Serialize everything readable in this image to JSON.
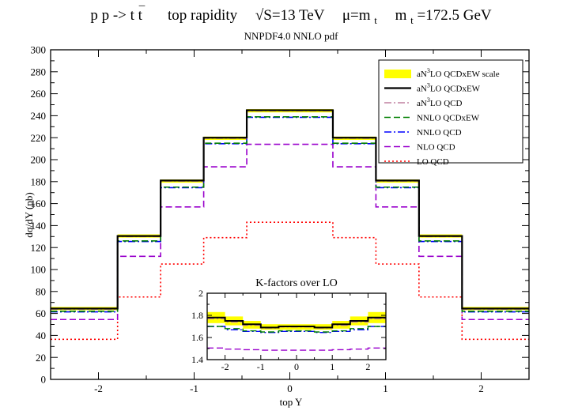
{
  "chart_data": [
    {
      "type": "line",
      "step": true,
      "title": "p p -> t t̄    top rapidity    √S=13 TeV    μ=m_t    m_t=172.5 GeV",
      "title_parts": {
        "process": "p p -> t t",
        "bar_top": "¯",
        "observable": "top rapidity",
        "energy": "√S=13 TeV",
        "scale_prefix": "μ=m",
        "scale_sub": "t",
        "mass_prefix": "m",
        "mass_sub": "t",
        "mass_value": "=172.5 GeV"
      },
      "subtitle": "NNPDF4.0 NNLO pdf",
      "xlabel": "top Y",
      "ylabel": "dσ/dY (pb)",
      "xlim": [
        -2.5,
        2.5
      ],
      "ylim": [
        0,
        300
      ],
      "xticks": [
        -2,
        -1,
        0,
        1,
        2
      ],
      "yticks": [
        0,
        20,
        40,
        60,
        80,
        100,
        120,
        140,
        160,
        180,
        200,
        220,
        240,
        260,
        280,
        300
      ],
      "bin_edges": [
        -2.5,
        -1.8,
        -1.35,
        -0.9,
        -0.45,
        0.45,
        0.9,
        1.35,
        1.8,
        2.5
      ],
      "grid": false,
      "legend_position": "top-right",
      "legend": [
        {
          "id": "band",
          "label_pre": "aN",
          "label_sup": "3",
          "label_post": "LO QCDxEW scale",
          "color": "#ffff00",
          "style": "band"
        },
        {
          "id": "an3lo_qcdxew",
          "label_pre": "aN",
          "label_sup": "3",
          "label_post": "LO QCDxEW",
          "color": "#000000",
          "style": "solid"
        },
        {
          "id": "an3lo_qcd",
          "label_pre": "aN",
          "label_sup": "3",
          "label_post": "LO QCD",
          "color": "#c080a0",
          "style": "dashdot"
        },
        {
          "id": "nnlo_qcdxew",
          "label_pre": "NNLO QCDxEW",
          "label_sup": "",
          "label_post": "",
          "color": "#008000",
          "style": "dashed"
        },
        {
          "id": "nnlo_qcd",
          "label_pre": "NNLO QCD",
          "label_sup": "",
          "label_post": "",
          "color": "#0000ff",
          "style": "dashdot"
        },
        {
          "id": "nlo_qcd",
          "label_pre": "NLO QCD",
          "label_sup": "",
          "label_post": "",
          "color": "#9900cc",
          "style": "dashed"
        },
        {
          "id": "lo_qcd",
          "label_pre": "LO QCD",
          "label_sup": "",
          "label_post": "",
          "color": "#ff0000",
          "style": "dotted"
        }
      ],
      "series": [
        {
          "id": "band_upper",
          "values": [
            66,
            132,
            182,
            221,
            246,
            221,
            182,
            132,
            66
          ]
        },
        {
          "id": "band_lower",
          "values": [
            63,
            129,
            179,
            218,
            243,
            218,
            179,
            129,
            63
          ]
        },
        {
          "id": "an3lo_qcdxew",
          "values": [
            64.5,
            130.5,
            181,
            220,
            245,
            220,
            181,
            130.5,
            64.5
          ]
        },
        {
          "id": "an3lo_qcd",
          "values": [
            64,
            130,
            180.5,
            219.5,
            244.5,
            219.5,
            180.5,
            130,
            64
          ]
        },
        {
          "id": "nnlo_qcdxew",
          "values": [
            62,
            126,
            175,
            215,
            239,
            215,
            175,
            126,
            62
          ]
        },
        {
          "id": "nnlo_qcd",
          "values": [
            61.5,
            125.5,
            174.5,
            214.5,
            238.5,
            214.5,
            174.5,
            125.5,
            61.5
          ]
        },
        {
          "id": "nlo_qcd",
          "values": [
            54.5,
            112,
            157,
            193.5,
            214,
            193.5,
            157,
            112,
            54.5
          ]
        },
        {
          "id": "lo_qcd",
          "values": [
            36.5,
            75,
            105,
            129,
            143,
            129,
            105,
            75,
            36.5
          ]
        }
      ]
    },
    {
      "type": "line",
      "step": true,
      "title": "K-factors over LO",
      "xlim": [
        -2.5,
        2.5
      ],
      "ylim": [
        1.4,
        2.0
      ],
      "xticks": [
        -2,
        -1,
        0,
        1,
        2
      ],
      "yticks": [
        1.4,
        1.6,
        1.8,
        2.0
      ],
      "yticklabels": [
        "1.4",
        "1.6",
        "1.8",
        "2"
      ],
      "bin_edges": [
        -2.5,
        -2.0,
        -1.5,
        -1.0,
        -0.5,
        0.5,
        1.0,
        1.5,
        2.0,
        2.5
      ],
      "series": [
        {
          "id": "band_upper",
          "values": [
            1.83,
            1.79,
            1.75,
            1.72,
            1.72,
            1.72,
            1.75,
            1.79,
            1.83
          ]
        },
        {
          "id": "band_lower",
          "values": [
            1.73,
            1.71,
            1.68,
            1.67,
            1.67,
            1.67,
            1.68,
            1.71,
            1.73
          ]
        },
        {
          "id": "an3lo_qcdxew",
          "values": [
            1.78,
            1.75,
            1.72,
            1.69,
            1.7,
            1.69,
            1.72,
            1.75,
            1.78
          ]
        },
        {
          "id": "an3lo_qcd",
          "values": [
            1.77,
            1.74,
            1.71,
            1.685,
            1.695,
            1.685,
            1.71,
            1.74,
            1.77
          ]
        },
        {
          "id": "nnlo_qcdxew",
          "values": [
            1.7,
            1.68,
            1.66,
            1.65,
            1.66,
            1.65,
            1.66,
            1.68,
            1.7
          ]
        },
        {
          "id": "nnlo_qcd",
          "values": [
            1.7,
            1.67,
            1.655,
            1.645,
            1.655,
            1.645,
            1.655,
            1.67,
            1.7
          ]
        },
        {
          "id": "nlo_qcd",
          "values": [
            1.505,
            1.495,
            1.49,
            1.485,
            1.485,
            1.485,
            1.49,
            1.495,
            1.505
          ]
        }
      ]
    }
  ]
}
